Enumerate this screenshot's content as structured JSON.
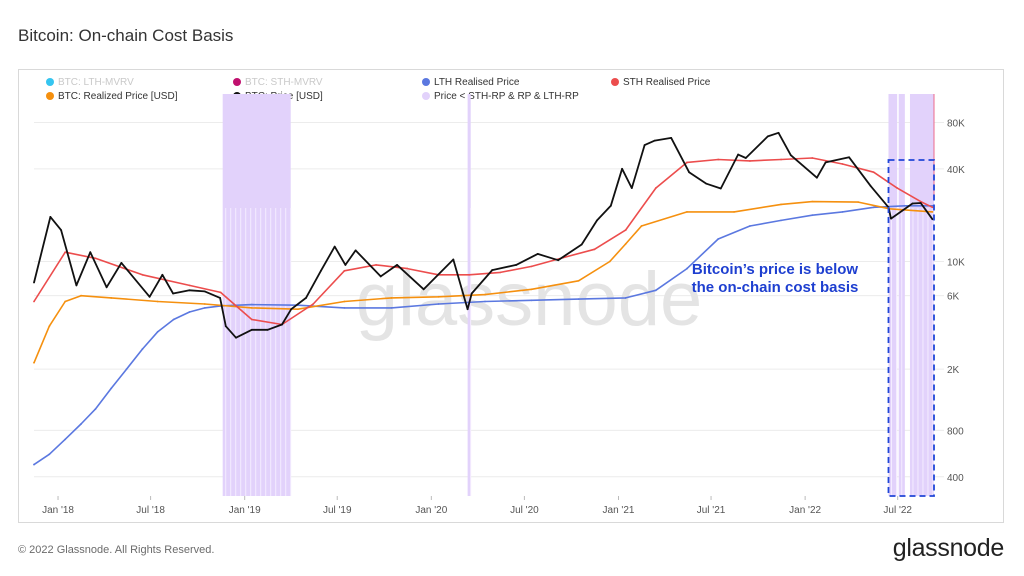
{
  "title": "Bitcoin: On-chain Cost Basis",
  "footer": "© 2022 Glassnode. All Rights Reserved.",
  "logo": "glassnode",
  "watermark": "glassnode",
  "annotation": "Bitcoin’s price is below the on-chain cost basis",
  "legend": [
    {
      "label": "BTC: LTH-MVRV",
      "color": "#35c5f0",
      "faded": true
    },
    {
      "label": "BTC: STH-MVRV",
      "color": "#c0106e",
      "faded": true
    },
    {
      "label": "LTH Realised Price",
      "color": "#5b78e0",
      "faded": false
    },
    {
      "label": "STH Realised Price",
      "color": "#ec4d4d",
      "faded": false
    },
    {
      "label": "BTC: Realized Price [USD]",
      "color": "#f5900f",
      "faded": false
    },
    {
      "label": "BTC: Price [USD]",
      "color": "#111111",
      "faded": false
    },
    {
      "label": "Price < STH-RP & RP & LTH-RP",
      "color": "#e2d2fb",
      "faded": false
    }
  ],
  "chart_data": {
    "type": "line",
    "title": "Bitcoin: On-chain Cost Basis",
    "y_scale": "log",
    "ylim": [
      300,
      130000
    ],
    "y_ticks": [
      400,
      800,
      2000,
      6000,
      10000,
      40000,
      80000
    ],
    "y_tick_labels": [
      "400",
      "800",
      "2K",
      "6K",
      "10K",
      "40K",
      "80K"
    ],
    "x_tick_labels": [
      "Jan '18",
      "Jul '18",
      "Jan '19",
      "Jul '19",
      "Jan '20",
      "Jul '20",
      "Jan '21",
      "Jul '21",
      "Jan '22",
      "Jul '22"
    ],
    "x_tick_dates": [
      "2018-01-01",
      "2018-07-01",
      "2019-01-01",
      "2019-07-01",
      "2020-01-01",
      "2020-07-01",
      "2021-01-01",
      "2021-07-01",
      "2022-01-01",
      "2022-07-01"
    ],
    "xlim": [
      "2017-11-15",
      "2022-09-10"
    ],
    "grid": true,
    "legend_position": "top",
    "series": [
      {
        "name": "BTC: Price [USD]",
        "color": "#111111",
        "x": [
          "2017-11-15",
          "2017-12-17",
          "2018-01-07",
          "2018-02-06",
          "2018-03-05",
          "2018-04-06",
          "2018-05-05",
          "2018-06-29",
          "2018-07-24",
          "2018-08-14",
          "2018-09-15",
          "2018-10-15",
          "2018-11-14",
          "2018-11-25",
          "2018-12-15",
          "2019-01-15",
          "2019-02-15",
          "2019-03-15",
          "2019-04-02",
          "2019-05-01",
          "2019-05-30",
          "2019-06-26",
          "2019-07-17",
          "2019-08-06",
          "2019-09-24",
          "2019-10-26",
          "2019-12-17",
          "2020-02-13",
          "2020-03-12",
          "2020-03-20",
          "2020-04-29",
          "2020-06-15",
          "2020-07-27",
          "2020-09-05",
          "2020-10-21",
          "2020-11-20",
          "2020-12-17",
          "2021-01-08",
          "2021-01-27",
          "2021-02-21",
          "2021-03-13",
          "2021-04-14",
          "2021-05-19",
          "2021-06-22",
          "2021-07-20",
          "2021-08-23",
          "2021-09-07",
          "2021-10-20",
          "2021-11-10",
          "2021-12-04",
          "2022-01-24",
          "2022-02-10",
          "2022-03-28",
          "2022-05-09",
          "2022-06-13",
          "2022-06-18",
          "2022-07-30",
          "2022-08-15",
          "2022-09-07"
        ],
        "y": [
          7300,
          19500,
          16000,
          7000,
          11500,
          6800,
          9800,
          5900,
          8200,
          6200,
          6500,
          6400,
          5800,
          3800,
          3200,
          3600,
          3600,
          3900,
          4900,
          5800,
          8700,
          12500,
          9500,
          11800,
          8000,
          9500,
          6600,
          10300,
          4900,
          6200,
          8800,
          9500,
          11200,
          10200,
          12900,
          18500,
          23000,
          40000,
          30000,
          57000,
          61000,
          63500,
          38000,
          32000,
          29800,
          49500,
          47000,
          65000,
          68500,
          49000,
          35000,
          44000,
          47500,
          31000,
          22500,
          19000,
          23800,
          24000,
          18800
        ]
      },
      {
        "name": "STH Realised Price",
        "color": "#ec4d4d",
        "x": [
          "2017-11-15",
          "2018-01-15",
          "2018-03-15",
          "2018-06-15",
          "2018-09-15",
          "2018-11-15",
          "2019-01-15",
          "2019-03-15",
          "2019-05-15",
          "2019-07-15",
          "2019-09-15",
          "2019-11-15",
          "2020-01-15",
          "2020-03-15",
          "2020-05-15",
          "2020-07-15",
          "2020-09-15",
          "2020-11-15",
          "2021-01-15",
          "2021-03-15",
          "2021-05-15",
          "2021-07-15",
          "2021-09-15",
          "2021-11-15",
          "2022-01-15",
          "2022-03-15",
          "2022-05-15",
          "2022-06-30",
          "2022-08-15",
          "2022-09-07"
        ],
        "y": [
          5500,
          11500,
          10500,
          8200,
          7000,
          6300,
          4200,
          3900,
          5300,
          8700,
          9500,
          9000,
          8200,
          8200,
          8500,
          9300,
          10600,
          12000,
          16000,
          30000,
          44000,
          46000,
          45000,
          46000,
          47000,
          43000,
          38000,
          30000,
          24500,
          22500
        ]
      },
      {
        "name": "BTC: Realized Price [USD]",
        "color": "#f5900f",
        "x": [
          "2017-11-15",
          "2017-12-15",
          "2018-01-15",
          "2018-02-15",
          "2018-04-15",
          "2018-07-15",
          "2018-10-15",
          "2019-01-15",
          "2019-04-15",
          "2019-07-15",
          "2019-10-15",
          "2020-01-15",
          "2020-04-15",
          "2020-07-15",
          "2020-10-15",
          "2020-12-15",
          "2021-01-15",
          "2021-02-15",
          "2021-05-15",
          "2021-08-15",
          "2021-11-15",
          "2022-01-15",
          "2022-04-15",
          "2022-06-15",
          "2022-09-07"
        ],
        "y": [
          2200,
          3800,
          5500,
          6000,
          5800,
          5500,
          5300,
          5000,
          4900,
          5500,
          5800,
          5900,
          6100,
          6600,
          7500,
          10000,
          13000,
          17000,
          21000,
          21000,
          23500,
          24500,
          24300,
          22000,
          21000
        ]
      },
      {
        "name": "LTH Realised Price",
        "color": "#5b78e0",
        "x": [
          "2017-11-15",
          "2017-12-15",
          "2018-01-15",
          "2018-02-15",
          "2018-03-15",
          "2018-04-15",
          "2018-05-15",
          "2018-06-15",
          "2018-07-15",
          "2018-08-15",
          "2018-09-15",
          "2018-10-15",
          "2018-11-15",
          "2019-01-15",
          "2019-04-15",
          "2019-07-15",
          "2019-10-15",
          "2020-01-15",
          "2020-04-15",
          "2020-07-15",
          "2020-10-15",
          "2021-01-15",
          "2021-03-15",
          "2021-05-15",
          "2021-07-15",
          "2021-09-15",
          "2021-11-15",
          "2022-01-15",
          "2022-03-15",
          "2022-05-15",
          "2022-07-15",
          "2022-09-07"
        ],
        "y": [
          480,
          560,
          700,
          880,
          1100,
          1500,
          2000,
          2700,
          3500,
          4200,
          4700,
          5000,
          5150,
          5250,
          5200,
          5000,
          5000,
          5300,
          5500,
          5600,
          5700,
          5800,
          6500,
          9000,
          14000,
          17000,
          18500,
          20000,
          21000,
          22500,
          23000,
          23000
        ]
      }
    ],
    "highlight_series": {
      "name": "Price < STH-RP & RP & LTH-RP",
      "color": "#e2d2fb",
      "ranges": [
        [
          "2018-11-19",
          "2019-04-01"
        ],
        [
          "2020-03-12",
          "2020-03-18"
        ],
        [
          "2022-06-13",
          "2022-06-30"
        ],
        [
          "2022-07-03",
          "2022-07-15"
        ],
        [
          "2022-07-25",
          "2022-09-10"
        ]
      ]
    },
    "callout_box": {
      "from": "2022-06-13",
      "to": "2022-09-10",
      "label": "Bitcoin’s price is below the on-chain cost basis"
    }
  }
}
